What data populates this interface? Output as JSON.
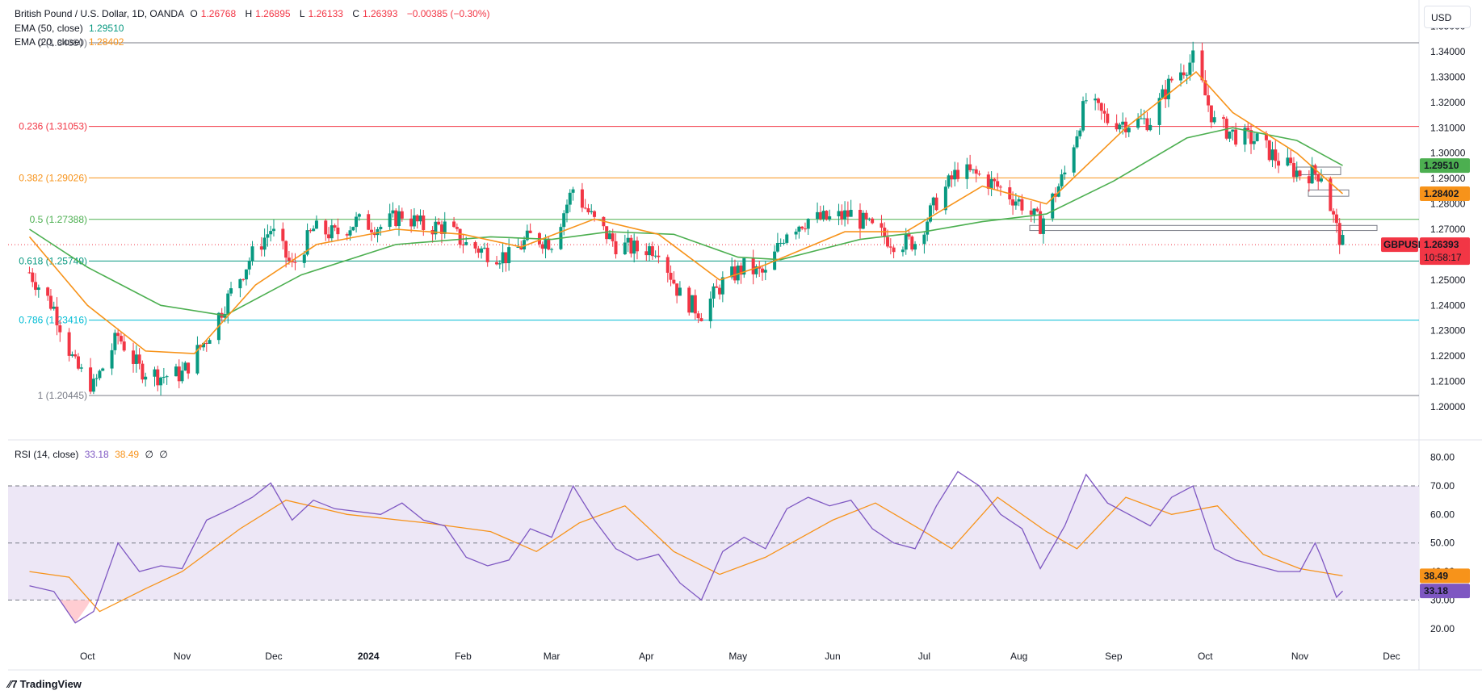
{
  "legend": {
    "title": "British Pound / U.S. Dollar, 1D, OANDA",
    "o_label": "O",
    "o_value": "1.26768",
    "h_label": "H",
    "h_value": "1.26895",
    "l_label": "L",
    "l_value": "1.26133",
    "c_label": "C",
    "c_value": "1.26393",
    "change": "−0.00385 (−0.30%)",
    "ema50_label": "EMA (50, close)",
    "ema50_value": "1.29510",
    "ema20_label": "EMA (20, close)",
    "ema20_value": "1.28402",
    "rsi_label": "RSI (14, close)",
    "rsi_value": "33.18",
    "rsi_ma_value": "38.49",
    "rsi_extra1": "∅",
    "rsi_extra2": "∅"
  },
  "currency_button": "USD",
  "branding": "TradingView",
  "colors": {
    "up": "#089981",
    "down": "#f23645",
    "ema50": "#4caf50",
    "ema20": "#f7931a",
    "rsi": "#7e57c2",
    "rsi_ma": "#f7931a",
    "rsi_band": "#ede7f6"
  },
  "chart_data": [
    {
      "type": "candlestick",
      "title": "British Pound / U.S. Dollar, 1D, OANDA",
      "symbol_tag": "GBPUSD",
      "last_price": "1.26393",
      "countdown": "10:58:17",
      "ema50_tag": "1.29510",
      "ema20_tag": "1.28402",
      "y_ticks": [
        "1.35000",
        "1.34000",
        "1.33000",
        "1.32000",
        "1.31000",
        "1.30000",
        "1.29000",
        "1.28000",
        "1.27000",
        "1.25000",
        "1.24000",
        "1.23000",
        "1.22000",
        "1.21000",
        "1.20000"
      ],
      "y_tick_values": [
        1.35,
        1.34,
        1.33,
        1.32,
        1.31,
        1.3,
        1.29,
        1.28,
        1.27,
        1.25,
        1.24,
        1.23,
        1.22,
        1.21,
        1.2
      ],
      "ylim": [
        1.1965,
        1.354
      ],
      "x_ticks": [
        "Oct",
        "Nov",
        "Dec",
        "2024",
        "Feb",
        "Mar",
        "Apr",
        "May",
        "Jun",
        "Jul",
        "Aug",
        "Sep",
        "Oct",
        "Nov",
        "Dec"
      ],
      "fib_levels": [
        {
          "label": "0 (1.34350)",
          "value": 1.3435,
          "color": "#787b86"
        },
        {
          "label": "0.236 (1.31053)",
          "value": 1.31053,
          "color": "#f23645"
        },
        {
          "label": "0.382 (1.29026)",
          "value": 1.29026,
          "color": "#f7931a"
        },
        {
          "label": "0.5 (1.27388)",
          "value": 1.27388,
          "color": "#4caf50"
        },
        {
          "label": "0.618 (1.25749)",
          "value": 1.25749,
          "color": "#089981"
        },
        {
          "label": "0.786 (1.23416)",
          "value": 1.23416,
          "color": "#00bcd4"
        },
        {
          "label": "1 (1.20445)",
          "value": 1.20445,
          "color": "#787b86"
        }
      ],
      "close_path": [
        [
          "2023-09-12",
          1.253
        ],
        [
          "2023-09-20",
          1.239
        ],
        [
          "2023-09-27",
          1.216
        ],
        [
          "2023-10-03",
          1.208
        ],
        [
          "2023-10-11",
          1.228
        ],
        [
          "2023-10-18",
          1.215
        ],
        [
          "2023-10-25",
          1.212
        ],
        [
          "2023-11-01",
          1.213
        ],
        [
          "2023-11-09",
          1.227
        ],
        [
          "2023-11-17",
          1.245
        ],
        [
          "2023-11-24",
          1.26
        ],
        [
          "2023-11-30",
          1.27
        ],
        [
          "2023-12-07",
          1.255
        ],
        [
          "2023-12-14",
          1.27
        ],
        [
          "2023-12-21",
          1.268
        ],
        [
          "2023-12-28",
          1.273
        ],
        [
          "2024-01-05",
          1.271
        ],
        [
          "2024-01-12",
          1.276
        ],
        [
          "2024-01-19",
          1.271
        ],
        [
          "2024-01-26",
          1.271
        ],
        [
          "2024-02-02",
          1.264
        ],
        [
          "2024-02-09",
          1.261
        ],
        [
          "2024-02-16",
          1.259
        ],
        [
          "2024-02-23",
          1.267
        ],
        [
          "2024-03-01",
          1.265
        ],
        [
          "2024-03-08",
          1.286
        ],
        [
          "2024-03-15",
          1.273
        ],
        [
          "2024-03-22",
          1.264
        ],
        [
          "2024-03-29",
          1.262
        ],
        [
          "2024-04-05",
          1.263
        ],
        [
          "2024-04-12",
          1.244
        ],
        [
          "2024-04-19",
          1.237
        ],
        [
          "2024-04-26",
          1.249
        ],
        [
          "2024-05-03",
          1.255
        ],
        [
          "2024-05-10",
          1.252
        ],
        [
          "2024-05-17",
          1.27
        ],
        [
          "2024-05-24",
          1.274
        ],
        [
          "2024-05-31",
          1.274
        ],
        [
          "2024-06-07",
          1.276
        ],
        [
          "2024-06-14",
          1.27
        ],
        [
          "2024-06-21",
          1.265
        ],
        [
          "2024-06-28",
          1.265
        ],
        [
          "2024-07-05",
          1.281
        ],
        [
          "2024-07-12",
          1.293
        ],
        [
          "2024-07-19",
          1.291
        ],
        [
          "2024-07-26",
          1.286
        ],
        [
          "2024-08-02",
          1.28
        ],
        [
          "2024-08-08",
          1.272
        ],
        [
          "2024-08-16",
          1.292
        ],
        [
          "2024-08-23",
          1.321
        ],
        [
          "2024-08-30",
          1.313
        ],
        [
          "2024-09-06",
          1.312
        ],
        [
          "2024-09-13",
          1.313
        ],
        [
          "2024-09-20",
          1.329
        ],
        [
          "2024-09-27",
          1.337
        ],
        [
          "2024-10-04",
          1.312
        ],
        [
          "2024-10-11",
          1.307
        ],
        [
          "2024-10-18",
          1.305
        ],
        [
          "2024-10-25",
          1.297
        ],
        [
          "2024-11-01",
          1.292
        ],
        [
          "2024-11-08",
          1.292
        ],
        [
          "2024-11-13",
          1.27
        ],
        [
          "2024-11-15",
          1.2639
        ]
      ],
      "ema50_path": [
        [
          "2023-09-12",
          1.27
        ],
        [
          "2023-10-01",
          1.255
        ],
        [
          "2023-10-25",
          1.24
        ],
        [
          "2023-11-15",
          1.236
        ],
        [
          "2023-12-10",
          1.252
        ],
        [
          "2024-01-10",
          1.264
        ],
        [
          "2024-02-10",
          1.267
        ],
        [
          "2024-03-01",
          1.266
        ],
        [
          "2024-03-20",
          1.269
        ],
        [
          "2024-04-10",
          1.268
        ],
        [
          "2024-05-01",
          1.259
        ],
        [
          "2024-05-15",
          1.258
        ],
        [
          "2024-06-10",
          1.266
        ],
        [
          "2024-07-01",
          1.269
        ],
        [
          "2024-07-20",
          1.273
        ],
        [
          "2024-08-10",
          1.276
        ],
        [
          "2024-09-01",
          1.289
        ],
        [
          "2024-09-25",
          1.306
        ],
        [
          "2024-10-10",
          1.31
        ],
        [
          "2024-10-31",
          1.305
        ],
        [
          "2024-11-15",
          1.2951
        ]
      ],
      "ema20_path": [
        [
          "2023-09-12",
          1.267
        ],
        [
          "2023-10-01",
          1.24
        ],
        [
          "2023-10-20",
          1.222
        ],
        [
          "2023-11-05",
          1.221
        ],
        [
          "2023-11-25",
          1.248
        ],
        [
          "2023-12-15",
          1.264
        ],
        [
          "2024-01-10",
          1.27
        ],
        [
          "2024-02-01",
          1.268
        ],
        [
          "2024-02-20",
          1.263
        ],
        [
          "2024-03-15",
          1.274
        ],
        [
          "2024-04-05",
          1.268
        ],
        [
          "2024-04-25",
          1.25
        ],
        [
          "2024-05-10",
          1.256
        ],
        [
          "2024-06-05",
          1.269
        ],
        [
          "2024-06-25",
          1.269
        ],
        [
          "2024-07-20",
          1.287
        ],
        [
          "2024-08-10",
          1.28
        ],
        [
          "2024-09-05",
          1.31
        ],
        [
          "2024-09-28",
          1.332
        ],
        [
          "2024-10-10",
          1.316
        ],
        [
          "2024-10-31",
          1.3
        ],
        [
          "2024-11-15",
          1.284
        ]
      ]
    },
    {
      "type": "line",
      "title": "RSI (14, close)",
      "y_ticks": [
        "80.00",
        "70.00",
        "60.00",
        "50.00",
        "40.00",
        "30.00",
        "20.00"
      ],
      "y_tick_values": [
        80,
        70,
        60,
        50,
        40,
        30,
        20
      ],
      "ylim": [
        14,
        83
      ],
      "band": [
        30,
        70
      ],
      "midline": 50,
      "rsi_tag": "33.18",
      "rsi_ma_tag": "38.49",
      "rsi_path": [
        [
          "2023-09-12",
          35
        ],
        [
          "2023-09-20",
          33
        ],
        [
          "2023-09-27",
          22
        ],
        [
          "2023-10-03",
          26
        ],
        [
          "2023-10-11",
          50
        ],
        [
          "2023-10-18",
          40
        ],
        [
          "2023-10-25",
          42
        ],
        [
          "2023-11-01",
          41
        ],
        [
          "2023-11-09",
          58
        ],
        [
          "2023-11-17",
          62
        ],
        [
          "2023-11-24",
          66
        ],
        [
          "2023-11-30",
          71
        ],
        [
          "2023-12-07",
          58
        ],
        [
          "2023-12-14",
          65
        ],
        [
          "2023-12-21",
          62
        ],
        [
          "2024-01-05",
          60
        ],
        [
          "2024-01-12",
          64
        ],
        [
          "2024-01-19",
          58
        ],
        [
          "2024-01-26",
          56
        ],
        [
          "2024-02-02",
          45
        ],
        [
          "2024-02-09",
          42
        ],
        [
          "2024-02-16",
          44
        ],
        [
          "2024-02-23",
          55
        ],
        [
          "2024-03-01",
          52
        ],
        [
          "2024-03-08",
          70
        ],
        [
          "2024-03-15",
          58
        ],
        [
          "2024-03-22",
          48
        ],
        [
          "2024-03-29",
          44
        ],
        [
          "2024-04-05",
          46
        ],
        [
          "2024-04-12",
          36
        ],
        [
          "2024-04-19",
          30
        ],
        [
          "2024-04-26",
          47
        ],
        [
          "2024-05-03",
          52
        ],
        [
          "2024-05-10",
          48
        ],
        [
          "2024-05-17",
          62
        ],
        [
          "2024-05-24",
          66
        ],
        [
          "2024-05-31",
          63
        ],
        [
          "2024-06-07",
          65
        ],
        [
          "2024-06-14",
          55
        ],
        [
          "2024-06-21",
          50
        ],
        [
          "2024-06-28",
          48
        ],
        [
          "2024-07-05",
          63
        ],
        [
          "2024-07-12",
          75
        ],
        [
          "2024-07-19",
          70
        ],
        [
          "2024-07-26",
          60
        ],
        [
          "2024-08-02",
          55
        ],
        [
          "2024-08-08",
          41
        ],
        [
          "2024-08-16",
          56
        ],
        [
          "2024-08-23",
          74
        ],
        [
          "2024-08-30",
          64
        ],
        [
          "2024-09-06",
          60
        ],
        [
          "2024-09-13",
          56
        ],
        [
          "2024-09-20",
          66
        ],
        [
          "2024-09-27",
          70
        ],
        [
          "2024-10-04",
          48
        ],
        [
          "2024-10-11",
          44
        ],
        [
          "2024-10-18",
          42
        ],
        [
          "2024-10-25",
          40
        ],
        [
          "2024-11-01",
          40
        ],
        [
          "2024-11-06",
          50
        ],
        [
          "2024-11-08",
          45
        ],
        [
          "2024-11-13",
          31
        ],
        [
          "2024-11-15",
          33.18
        ]
      ],
      "rsi_ma_path": [
        [
          "2023-09-12",
          40
        ],
        [
          "2023-09-25",
          38
        ],
        [
          "2023-10-05",
          26
        ],
        [
          "2023-10-20",
          34
        ],
        [
          "2023-11-01",
          40
        ],
        [
          "2023-11-20",
          55
        ],
        [
          "2023-12-05",
          65
        ],
        [
          "2023-12-25",
          60
        ],
        [
          "2024-01-20",
          57
        ],
        [
          "2024-02-10",
          54
        ],
        [
          "2024-02-25",
          47
        ],
        [
          "2024-03-10",
          57
        ],
        [
          "2024-03-25",
          63
        ],
        [
          "2024-04-10",
          47
        ],
        [
          "2024-04-25",
          39
        ],
        [
          "2024-05-10",
          45
        ],
        [
          "2024-06-01",
          58
        ],
        [
          "2024-06-15",
          64
        ],
        [
          "2024-07-01",
          54
        ],
        [
          "2024-07-10",
          48
        ],
        [
          "2024-07-25",
          66
        ],
        [
          "2024-08-10",
          54
        ],
        [
          "2024-08-20",
          48
        ],
        [
          "2024-09-05",
          66
        ],
        [
          "2024-09-20",
          60
        ],
        [
          "2024-10-05",
          63
        ],
        [
          "2024-10-20",
          46
        ],
        [
          "2024-11-01",
          41
        ],
        [
          "2024-11-15",
          38.49
        ]
      ]
    }
  ]
}
